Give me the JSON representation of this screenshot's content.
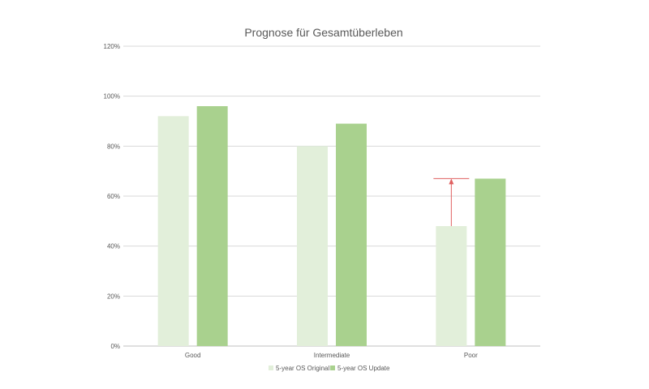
{
  "chart_data": {
    "type": "bar",
    "title": "Prognose für Gesamtüberleben",
    "xlabel": "",
    "ylabel": "",
    "categories": [
      "Good",
      "Intermediate",
      "Poor"
    ],
    "series": [
      {
        "name": "5-year OS Original",
        "values": [
          92,
          80,
          48
        ],
        "color": "#e2efda"
      },
      {
        "name": "5-year OS Update",
        "values": [
          96,
          89,
          67
        ],
        "color": "#a9d18e"
      }
    ],
    "ylim": [
      0,
      120
    ],
    "yticks": [
      0,
      20,
      40,
      60,
      80,
      100,
      120
    ],
    "ytick_labels": [
      "0%",
      "20%",
      "40%",
      "60%",
      "80%",
      "100%",
      "120%"
    ],
    "grid": true,
    "legend": "bottom",
    "annotation": {
      "type": "arrow",
      "category": "Poor",
      "from": 48,
      "to": 67,
      "color": "#e06060"
    }
  }
}
